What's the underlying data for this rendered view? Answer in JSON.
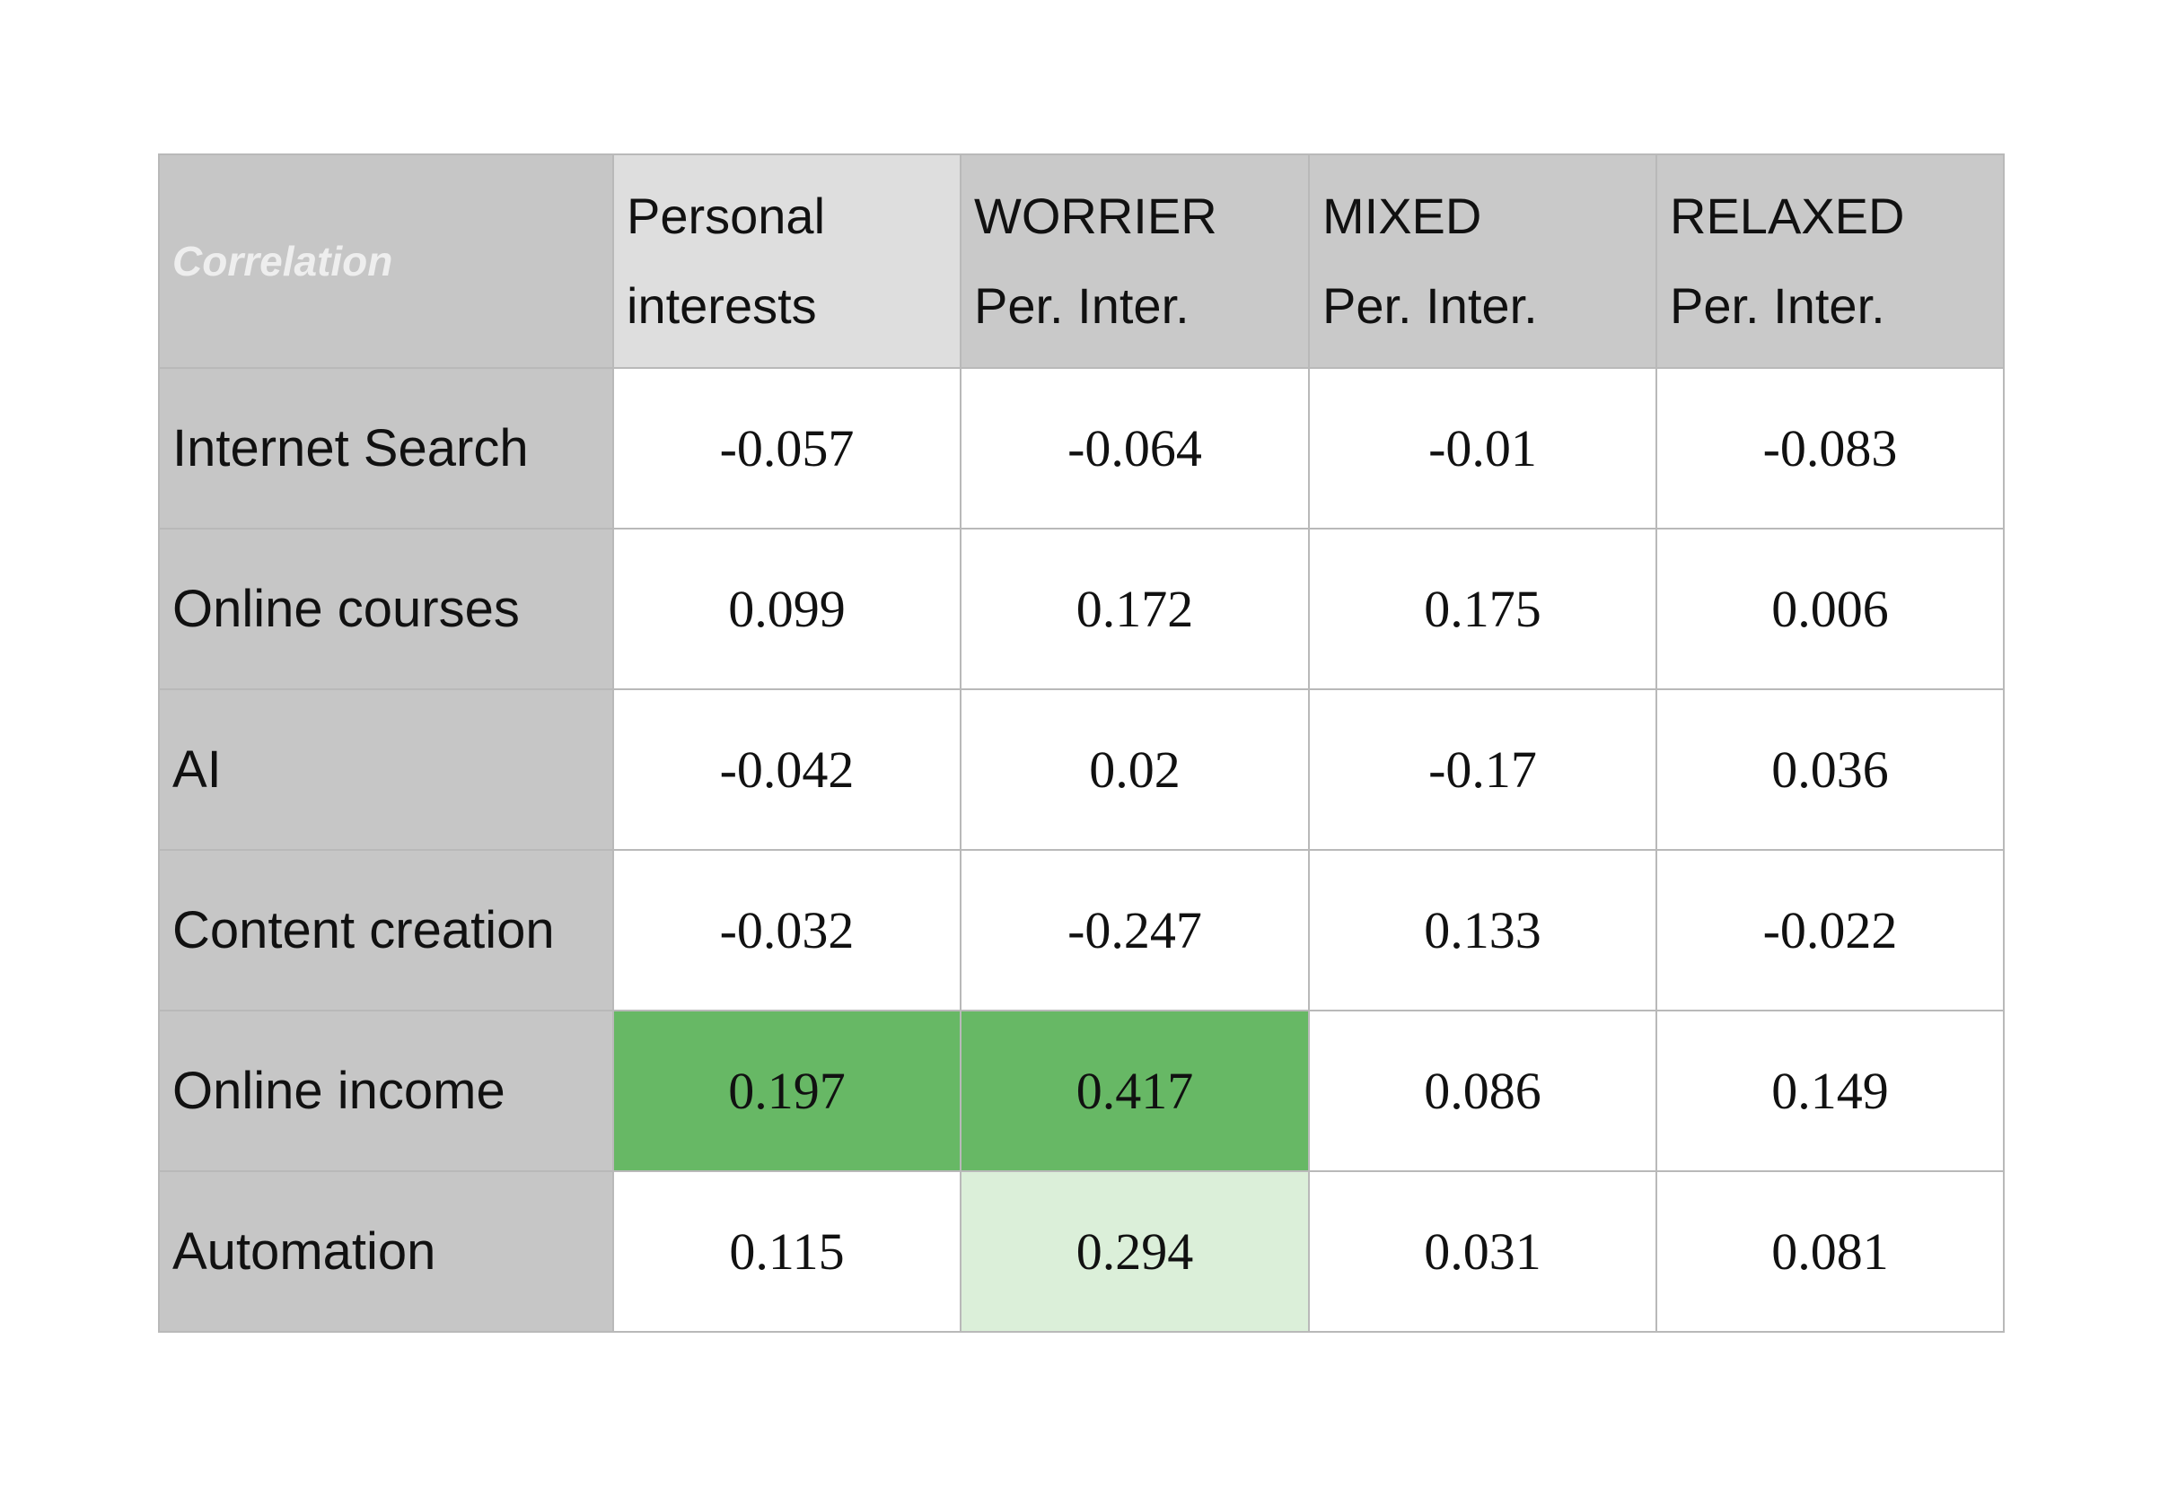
{
  "table": {
    "corner": "Correlation",
    "columns": [
      [
        "Personal",
        "interests"
      ],
      [
        "WORRIER",
        "Per. Inter."
      ],
      [
        "MIXED",
        "Per. Inter."
      ],
      [
        "RELAXED",
        "Per. Inter."
      ]
    ],
    "rows": [
      {
        "label": "Internet Search",
        "values": [
          -0.057,
          -0.064,
          -0.01,
          -0.083
        ]
      },
      {
        "label": "Online courses",
        "values": [
          0.099,
          0.172,
          0.175,
          0.006
        ]
      },
      {
        "label": "AI",
        "values": [
          -0.042,
          0.02,
          -0.17,
          0.036
        ]
      },
      {
        "label": "Content creation",
        "values": [
          -0.032,
          -0.247,
          0.133,
          -0.022
        ]
      },
      {
        "label": "Online income",
        "values": [
          0.197,
          0.417,
          0.086,
          0.149
        ]
      },
      {
        "label": "Automation",
        "values": [
          0.115,
          0.294,
          0.031,
          0.081
        ]
      }
    ]
  }
}
